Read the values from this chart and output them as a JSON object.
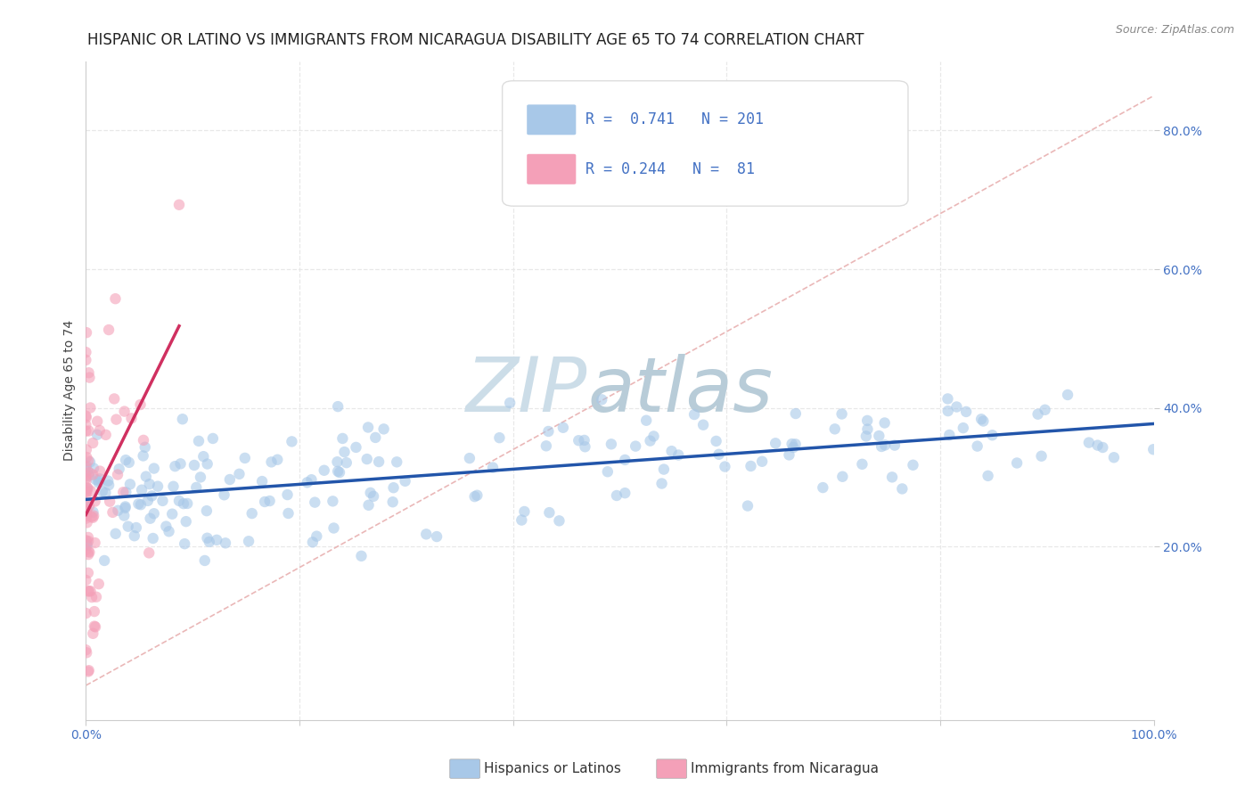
{
  "title": "HISPANIC OR LATINO VS IMMIGRANTS FROM NICARAGUA DISABILITY AGE 65 TO 74 CORRELATION CHART",
  "source": "Source: ZipAtlas.com",
  "ylabel": "Disability Age 65 to 74",
  "xlim": [
    0.0,
    1.0
  ],
  "ylim": [
    -0.05,
    0.9
  ],
  "blue_R": 0.741,
  "blue_N": 201,
  "pink_R": 0.244,
  "pink_N": 81,
  "blue_color": "#a8c8e8",
  "pink_color": "#f4a0b8",
  "blue_line_color": "#2255aa",
  "pink_line_color": "#d03060",
  "diagonal_color": "#e8b0b0",
  "grid_color": "#e8e8e8",
  "background_color": "#ffffff",
  "watermark_zip": "ZIP",
  "watermark_atlas": "atlas",
  "watermark_color_zip": "#c8d8e8",
  "watermark_color_atlas": "#b0c8d0",
  "legend_blue_label": "Hispanics or Latinos",
  "legend_pink_label": "Immigrants from Nicaragua",
  "title_fontsize": 12,
  "axis_label_fontsize": 10,
  "tick_fontsize": 10,
  "legend_fontsize": 11,
  "tick_color": "#4472c4",
  "title_color": "#222222",
  "source_color": "#888888",
  "ylabel_color": "#444444"
}
